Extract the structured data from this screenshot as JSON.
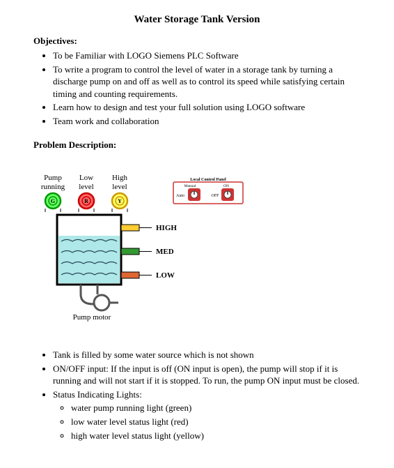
{
  "title": "Water Storage Tank Version",
  "objectives_heading": "Objectives:",
  "objectives": [
    "To be Familiar with LOGO Siemens PLC Software",
    "To write a program to control the level of water in a storage tank by turning a discharge pump on and off as well as to control its speed while satisfying certain timing and counting requirements.",
    "Learn how to design and test your full solution using LOGO software",
    "Team work and collaboration"
  ],
  "problem_heading": "Problem Description:",
  "diagram": {
    "indicators": [
      {
        "label_top": "Pump",
        "label_bot": "running",
        "letter": "G",
        "stroke": "#009900",
        "fill": "#66ff66"
      },
      {
        "label_top": "Low",
        "label_bot": "level",
        "letter": "R",
        "stroke": "#cc0000",
        "fill": "#ff6666"
      },
      {
        "label_top": "High",
        "label_bot": "level",
        "letter": "Y",
        "stroke": "#cc9900",
        "fill": "#ffff66"
      }
    ],
    "panel": {
      "title": "Local Control Panel",
      "left_label": "Manual",
      "right_label": "ON",
      "mid_auto": "Auto",
      "mid_off": "OFF",
      "border": "#cc3333",
      "knob_fill": "#cc3333",
      "knob_inner": "#ffffff"
    },
    "tank": {
      "stroke": "#000000",
      "water_fill": "#aee8e8",
      "wave_color": "#2a4a5a"
    },
    "sensors": [
      {
        "label": "HIGH",
        "color": "#ffcc33"
      },
      {
        "label": "MED",
        "color": "#339933"
      },
      {
        "label": "LOW",
        "color": "#dd6633"
      }
    ],
    "pump_label": "Pump motor",
    "pump_stroke": "#555555"
  },
  "description_bullets": [
    {
      "text": "Tank is filled by some water source which is not shown"
    },
    {
      "text": "ON/OFF input: If the input is off (ON input is open), the pump will stop if it is running and will not start if it is stopped. To run, the pump ON input must be closed."
    },
    {
      "text": "Status Indicating Lights:",
      "sub": [
        "water pump running light (green)",
        "low water level status light (red)",
        "high water level status light (yellow)"
      ]
    }
  ]
}
